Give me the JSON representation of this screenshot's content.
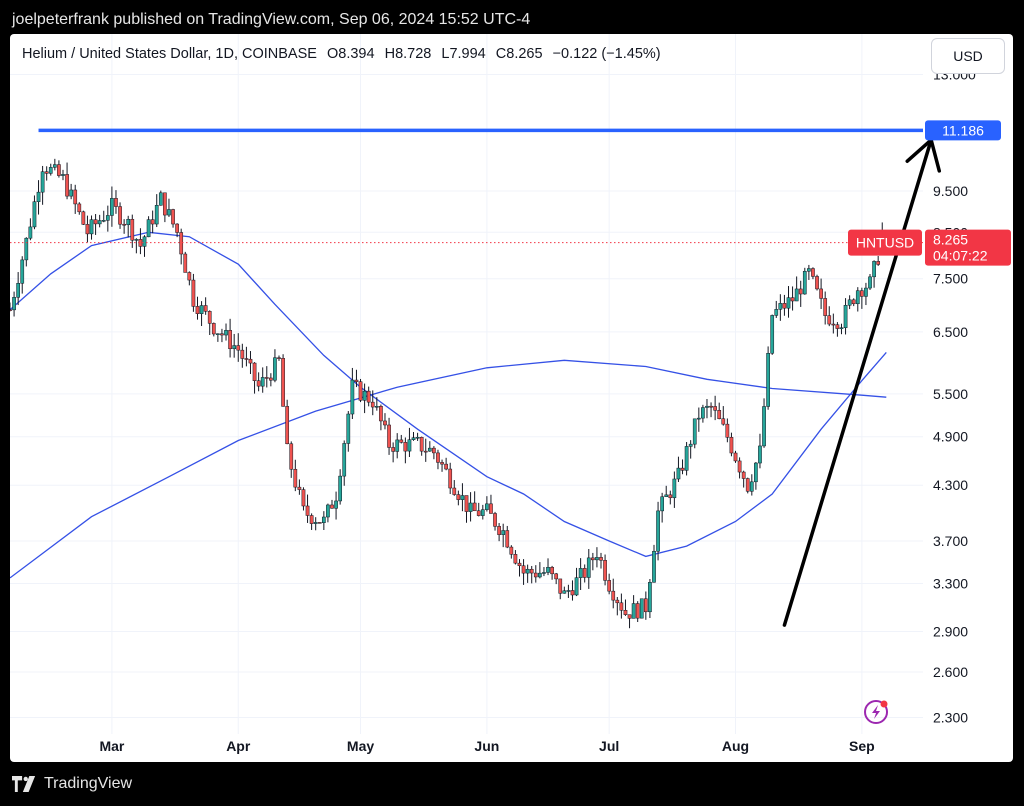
{
  "header": {
    "published_by": "joelpeterfrank published on TradingView.com, Sep 06, 2024 15:52 UTC-4"
  },
  "legend": {
    "instrument": "Helium / United States Dollar, 1D, COINBASE",
    "open": "O8.394",
    "high": "H8.728",
    "low": "L7.994",
    "close": "C8.265",
    "change": "−0.122 (−1.45%)"
  },
  "currency_button": {
    "label": "USD"
  },
  "footer": {
    "brand": "TradingView"
  },
  "labels": {
    "level_value": "11.186",
    "symbol": "HNTUSD",
    "last_price": "8.265",
    "countdown": "04:07:22"
  },
  "colors": {
    "up": "#26a69a",
    "down": "#ef5350",
    "ma": "#3551e6",
    "level": "#2962ff",
    "price_label": "#f23645",
    "arrow": "#000000"
  },
  "chart_data": {
    "type": "candlestick",
    "title": "Helium / United States Dollar, 1D, COINBASE",
    "scale": "log",
    "ylim": [
      2.2,
      14.5
    ],
    "y_ticks": [
      13.0,
      9.5,
      8.5,
      7.5,
      6.5,
      5.5,
      4.9,
      4.3,
      3.7,
      3.3,
      2.9,
      2.6,
      2.3
    ],
    "y_tick_labels": [
      "13.000",
      "9.500",
      "8.500",
      "7.500",
      "6.500",
      "5.500",
      "4.900",
      "4.300",
      "3.700",
      "3.300",
      "2.900",
      "2.600",
      "2.300"
    ],
    "x_start": "2024-02-05",
    "x_end": "2024-09-16",
    "x_ticks": [
      {
        "label": "Mar",
        "date": "2024-03-01"
      },
      {
        "label": "Apr",
        "date": "2024-04-01"
      },
      {
        "label": "May",
        "date": "2024-05-01"
      },
      {
        "label": "Jun",
        "date": "2024-06-01"
      },
      {
        "label": "Jul",
        "date": "2024-07-01"
      },
      {
        "label": "Aug",
        "date": "2024-08-01"
      },
      {
        "label": "Sep",
        "date": "2024-09-01"
      }
    ],
    "price_anchors": [
      [
        "2024-02-05",
        6.9
      ],
      [
        "2024-02-09",
        8.3
      ],
      [
        "2024-02-13",
        10.2
      ],
      [
        "2024-02-18",
        9.8
      ],
      [
        "2024-02-24",
        8.5
      ],
      [
        "2024-03-01",
        9.1
      ],
      [
        "2024-03-05",
        8.7
      ],
      [
        "2024-03-08",
        8.2
      ],
      [
        "2024-03-13",
        9.3
      ],
      [
        "2024-03-17",
        8.5
      ],
      [
        "2024-03-21",
        7.1
      ],
      [
        "2024-03-26",
        6.6
      ],
      [
        "2024-04-01",
        6.2
      ],
      [
        "2024-04-06",
        5.6
      ],
      [
        "2024-04-11",
        6.0
      ],
      [
        "2024-04-13",
        4.7
      ],
      [
        "2024-04-17",
        4.0
      ],
      [
        "2024-04-22",
        3.9
      ],
      [
        "2024-04-25",
        4.2
      ],
      [
        "2024-04-29",
        5.6
      ],
      [
        "2024-05-04",
        5.4
      ],
      [
        "2024-05-08",
        4.8
      ],
      [
        "2024-05-15",
        4.8
      ],
      [
        "2024-05-19",
        4.7
      ],
      [
        "2024-05-24",
        4.3
      ],
      [
        "2024-05-28",
        4.0
      ],
      [
        "2024-06-01",
        4.0
      ],
      [
        "2024-06-05",
        3.8
      ],
      [
        "2024-06-10",
        3.4
      ],
      [
        "2024-06-16",
        3.4
      ],
      [
        "2024-06-20",
        3.2
      ],
      [
        "2024-06-25",
        3.4
      ],
      [
        "2024-06-28",
        3.6
      ],
      [
        "2024-07-01",
        3.3
      ],
      [
        "2024-07-05",
        3.05
      ],
      [
        "2024-07-10",
        3.1
      ],
      [
        "2024-07-13",
        4.0
      ],
      [
        "2024-07-18",
        4.4
      ],
      [
        "2024-07-23",
        5.2
      ],
      [
        "2024-07-26",
        5.3
      ],
      [
        "2024-07-30",
        4.9
      ],
      [
        "2024-08-04",
        4.3
      ],
      [
        "2024-08-07",
        4.7
      ],
      [
        "2024-08-10",
        6.8
      ],
      [
        "2024-08-15",
        7.1
      ],
      [
        "2024-08-19",
        7.6
      ],
      [
        "2024-08-23",
        6.8
      ],
      [
        "2024-08-27",
        6.7
      ],
      [
        "2024-08-31",
        7.3
      ],
      [
        "2024-09-03",
        7.4
      ],
      [
        "2024-09-06",
        8.265
      ]
    ],
    "series": [
      {
        "name": "",
        "type": "moving_average_short",
        "points": [
          [
            "2024-02-05",
            6.9
          ],
          [
            "2024-02-15",
            7.6
          ],
          [
            "2024-02-25",
            8.2
          ],
          [
            "2024-03-10",
            8.5
          ],
          [
            "2024-03-20",
            8.4
          ],
          [
            "2024-04-01",
            7.8
          ],
          [
            "2024-04-10",
            7.0
          ],
          [
            "2024-04-22",
            6.1
          ],
          [
            "2024-05-01",
            5.6
          ],
          [
            "2024-05-15",
            5.0
          ],
          [
            "2024-06-01",
            4.4
          ],
          [
            "2024-06-10",
            4.2
          ],
          [
            "2024-06-20",
            3.9
          ],
          [
            "2024-07-01",
            3.7
          ],
          [
            "2024-07-10",
            3.55
          ],
          [
            "2024-07-20",
            3.65
          ],
          [
            "2024-08-01",
            3.9
          ],
          [
            "2024-08-10",
            4.2
          ],
          [
            "2024-08-22",
            5.0
          ],
          [
            "2024-09-01",
            5.7
          ],
          [
            "2024-09-07",
            6.15
          ]
        ]
      },
      {
        "name": "",
        "type": "moving_average_long",
        "points": [
          [
            "2024-02-05",
            3.35
          ],
          [
            "2024-02-25",
            3.95
          ],
          [
            "2024-03-15",
            4.4
          ],
          [
            "2024-04-01",
            4.85
          ],
          [
            "2024-04-20",
            5.25
          ],
          [
            "2024-05-10",
            5.6
          ],
          [
            "2024-06-01",
            5.9
          ],
          [
            "2024-06-20",
            6.02
          ],
          [
            "2024-07-10",
            5.92
          ],
          [
            "2024-07-25",
            5.72
          ],
          [
            "2024-08-10",
            5.58
          ],
          [
            "2024-09-01",
            5.48
          ],
          [
            "2024-09-07",
            5.45
          ]
        ]
      }
    ],
    "horizontal_level": {
      "value": 11.186,
      "label": "11.186"
    },
    "arrow": {
      "from": [
        "2024-08-13",
        2.95
      ],
      "to": [
        "2024-09-18",
        10.9
      ]
    },
    "last_price": {
      "value": 8.265
    }
  }
}
